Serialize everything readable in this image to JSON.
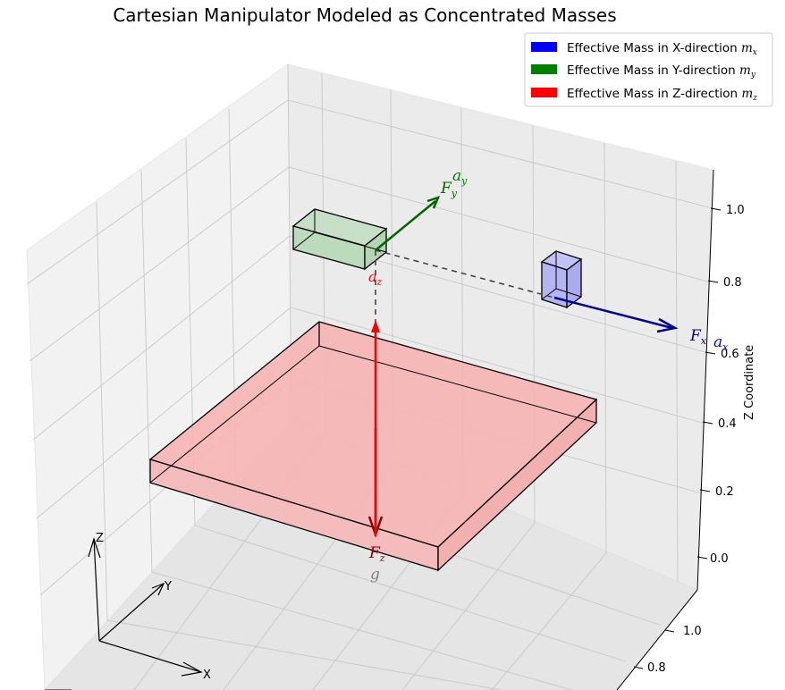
{
  "chart_data": {
    "type": "3d-diagram",
    "title": "Cartesian Manipulator Modeled as Concentrated Masses",
    "zlabel": "Z Coordinate",
    "z_ticks": [
      "0.0",
      "0.2",
      "0.4",
      "0.6",
      "0.8",
      "1.0"
    ],
    "y_ticks": [
      "0.8",
      "1.0"
    ],
    "grid": true,
    "legend_position": "top-right",
    "legend": [
      {
        "label": "Effective Mass in X-direction ",
        "sym": "m",
        "sub": "x",
        "color": "#0000ff"
      },
      {
        "label": "Effective Mass in Y-direction ",
        "sym": "m",
        "sub": "y",
        "color": "#008000"
      },
      {
        "label": "Effective Mass in Z-direction ",
        "sym": "m",
        "sub": "z",
        "color": "#ff0000"
      }
    ],
    "annotations": {
      "fx": {
        "sym": "F",
        "sub": "x"
      },
      "ax": {
        "sym": "a",
        "sub": "x"
      },
      "fy": {
        "sym": "F",
        "sub": "y"
      },
      "ay": {
        "sym": "a",
        "sub": "y"
      },
      "fz": {
        "sym": "F",
        "sub": "z"
      },
      "az": {
        "sym": "a",
        "sub": "z"
      },
      "g": "g"
    },
    "triad": {
      "x": "X",
      "y": "Y",
      "z": "Z"
    },
    "colors": {
      "x": "#0000ff",
      "y": "#008000",
      "z": "#ff0000",
      "gravity": "#808080"
    }
  }
}
